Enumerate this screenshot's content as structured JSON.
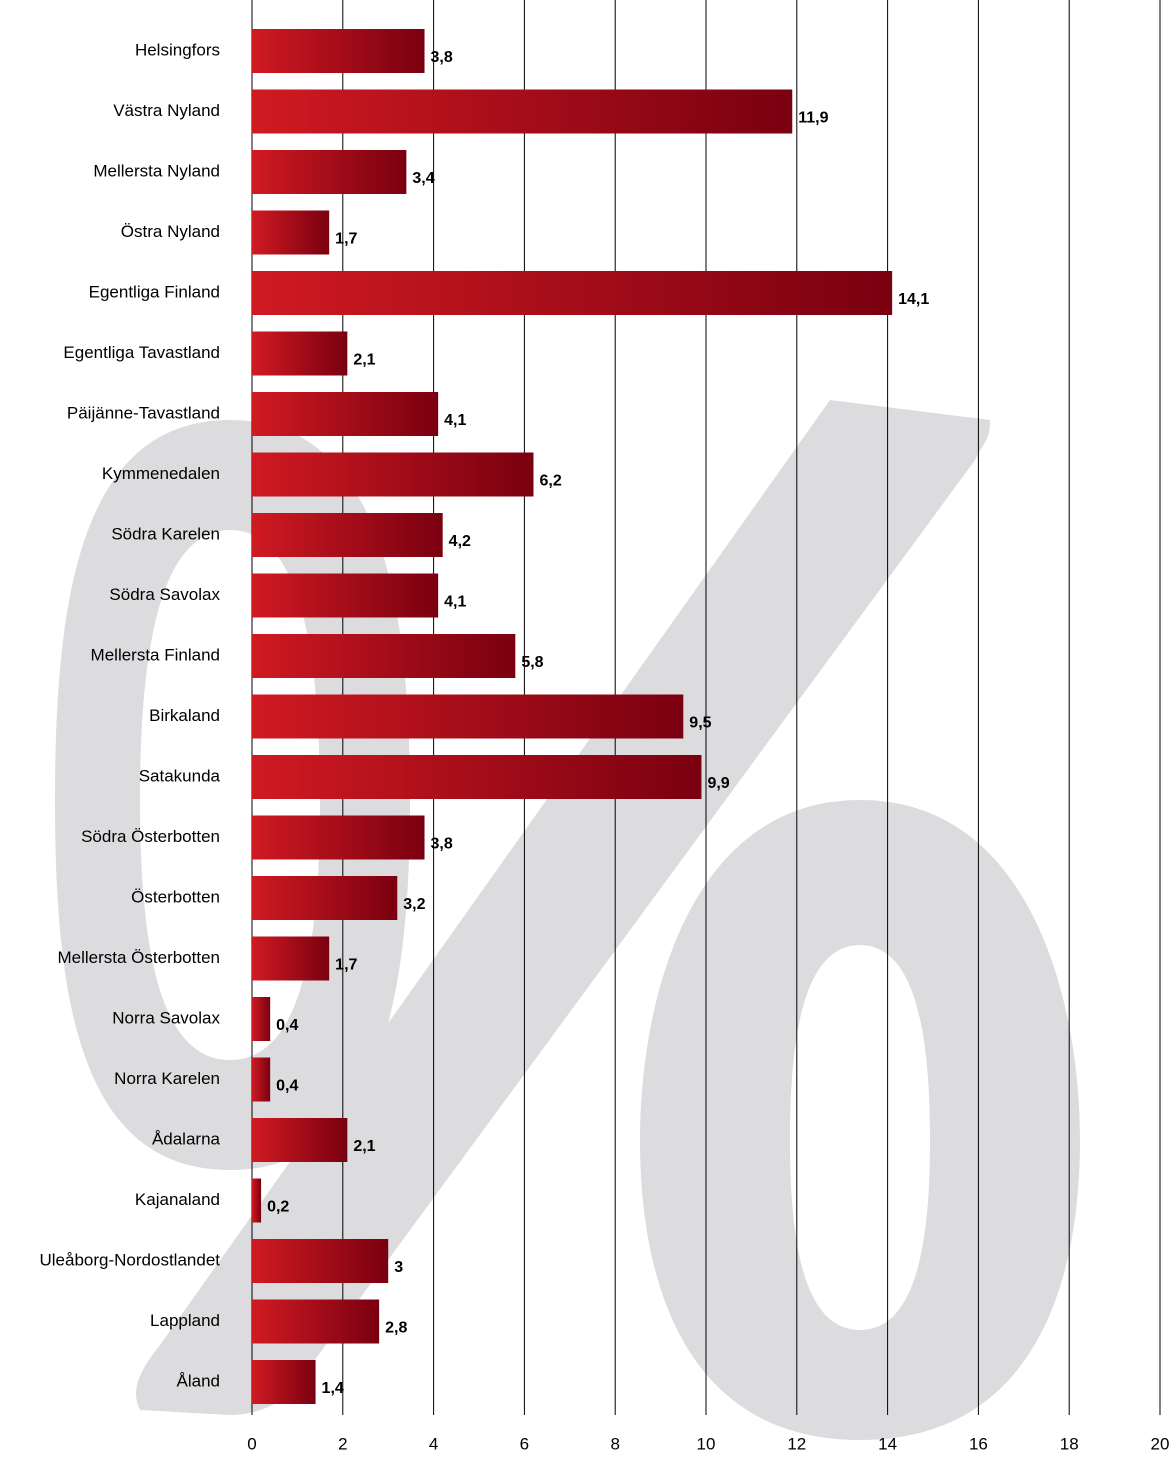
{
  "chart_data": {
    "type": "barh",
    "categories": [
      "Helsingfors",
      "Västra Nyland",
      "Mellersta Nyland",
      "Östra Nyland",
      "Egentliga Finland",
      "Egentliga Tavastland",
      "Päijänne-Tavastland",
      "Kymmenedalen",
      "Södra Karelen",
      "Södra Savolax",
      "Mellersta Finland",
      "Birkaland",
      "Satakunda",
      "Södra Österbotten",
      "Österbotten",
      "Mellersta Österbotten",
      "Norra Savolax",
      "Norra Karelen",
      "Ådalarna",
      "Kajanaland",
      "Uleåborg-Nordostlandet",
      "Lappland",
      "Åland"
    ],
    "values": [
      3.8,
      11.9,
      3.4,
      1.7,
      14.1,
      2.1,
      4.1,
      6.2,
      4.2,
      4.1,
      5.8,
      9.5,
      9.9,
      3.8,
      3.2,
      1.7,
      0.4,
      0.4,
      2.1,
      0.2,
      3,
      2.8,
      1.4
    ],
    "value_labels": [
      "3,8",
      "11,9",
      "3,4",
      "1,7",
      "14,1",
      "2,1",
      "4,1",
      "6,2",
      "4,2",
      "4,1",
      "5,8",
      "9,5",
      "9,9",
      "3,8",
      "3,2",
      "1,7",
      "0,4",
      "0,4",
      "2,1",
      "0,2",
      "3",
      "2,8",
      "1,4"
    ],
    "color": [
      "#d01a22",
      "#7a0010"
    ],
    "xlim": [
      0,
      20
    ],
    "xticks": [
      0,
      2,
      4,
      6,
      8,
      10,
      12,
      14,
      16,
      18,
      20
    ],
    "grid": true
  }
}
